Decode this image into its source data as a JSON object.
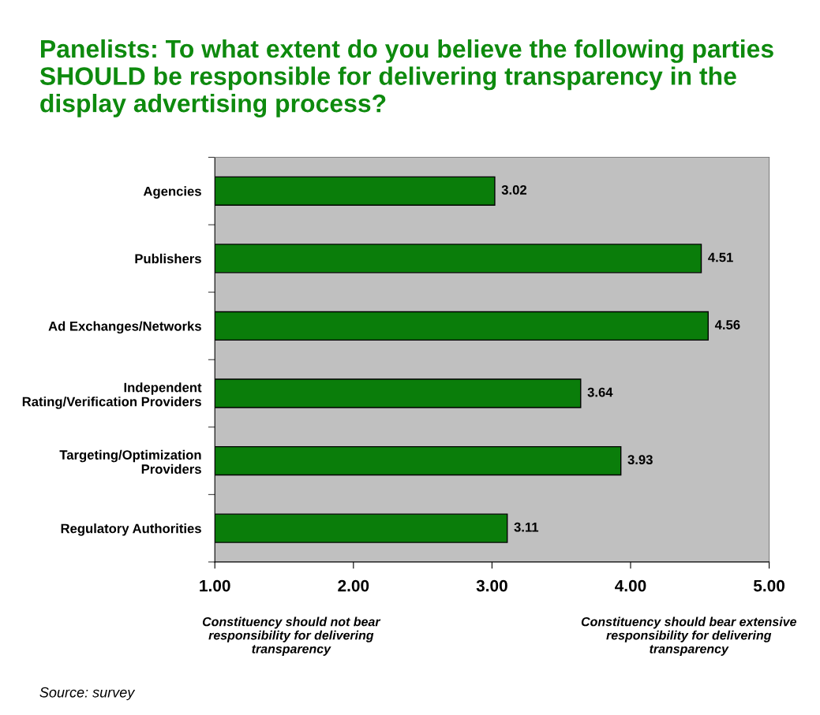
{
  "chart_data": {
    "type": "bar",
    "orientation": "horizontal",
    "title": "Panelists: To what extent do you believe the following parties SHOULD be responsible for delivering transparency in the display advertising process?",
    "categories": [
      "Agencies",
      "Publishers",
      "Ad Exchanges/Networks",
      "Independent\nRating/Verification Providers",
      "Targeting/Optimization\nProviders",
      "Regulatory Authorities"
    ],
    "values": [
      3.02,
      4.51,
      4.56,
      3.64,
      3.93,
      3.11
    ],
    "color": "#0a7d0a",
    "data_labels": true,
    "xlim": [
      1,
      5
    ],
    "xticks": [
      {
        "value": 1,
        "label": "1.00"
      },
      {
        "value": 2,
        "label": "2.00"
      },
      {
        "value": 3,
        "label": "3.00"
      },
      {
        "value": 4,
        "label": "4.00"
      },
      {
        "value": 5,
        "label": "5.00"
      }
    ],
    "annotations": [
      "Constituency should not bear responsibility for delivering transparency",
      "Constituency should bear extensive responsibility for delivering transparency",
      "Source: survey"
    ]
  }
}
